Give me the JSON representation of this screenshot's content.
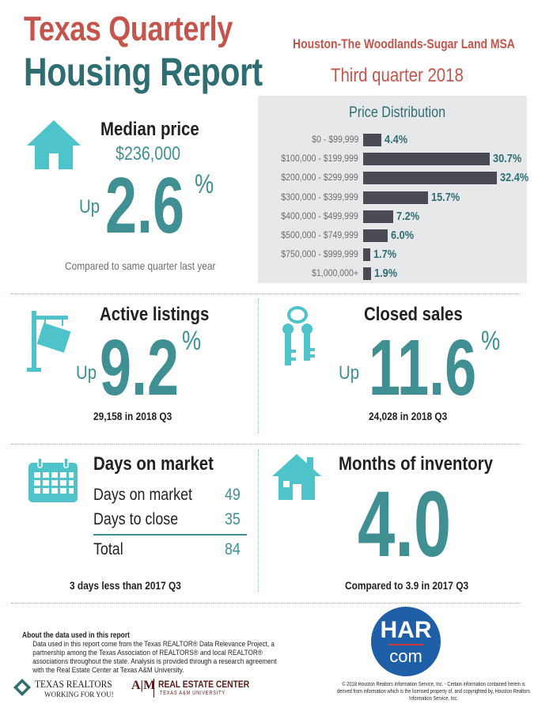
{
  "header": {
    "title_line1": "Texas Quarterly",
    "title_line2": "Housing Report",
    "msa": "Houston-The Woodlands-Sugar Land MSA",
    "quarter": "Third quarter 2018"
  },
  "median_price": {
    "heading": "Median price",
    "price": "$236,000",
    "direction": "Up",
    "change": "2.6",
    "unit": "%",
    "comparison": "Compared to same quarter last year"
  },
  "price_distribution": {
    "title": "Price Distribution",
    "ranges": [
      {
        "label": "$0 - $99,999",
        "value": 4.4,
        "display": "4.4%"
      },
      {
        "label": "$100,000 - $199,999",
        "value": 30.7,
        "display": "30.7%"
      },
      {
        "label": "$200,000 - $299,999",
        "value": 32.4,
        "display": "32.4%"
      },
      {
        "label": "$300,000 - $399,999",
        "value": 15.7,
        "display": "15.7%"
      },
      {
        "label": "$400,000 - $499,999",
        "value": 7.2,
        "display": "7.2%"
      },
      {
        "label": "$500,000 - $749,999",
        "value": 6.0,
        "display": "6.0%"
      },
      {
        "label": "$750,000 - $999,999",
        "value": 1.7,
        "display": "1.7%"
      },
      {
        "label": "$1,000,000+",
        "value": 1.9,
        "display": "1.9%"
      }
    ]
  },
  "active_listings": {
    "heading": "Active listings",
    "direction": "Up",
    "change": "9.2",
    "unit": "%",
    "detail": "29,158 in 2018 Q3"
  },
  "closed_sales": {
    "heading": "Closed sales",
    "direction": "Up",
    "change": "11.6",
    "unit": "%",
    "detail": "24,028 in 2018 Q3"
  },
  "days_on_market": {
    "heading": "Days on market",
    "rows": [
      {
        "label": "Days on market",
        "value": "49"
      },
      {
        "label": "Days to close",
        "value": "35"
      }
    ],
    "total_label": "Total",
    "total_value": "84",
    "comparison": "3 days less than 2017 Q3"
  },
  "months_of_inventory": {
    "heading": "Months of inventory",
    "value": "4.0",
    "comparison": "Compared to 3.9 in 2017 Q3"
  },
  "about": {
    "title": "About the data used in this report",
    "text": "Data used in this report come from the Texas REALTOR® Data Relevance Project, a partnership among the Texas Association of REALTORS® and local REALTOR® associations throughout the state. Analysis is provided through a research agreement with the Real Estate Center at Texas A&M University."
  },
  "logos": {
    "texas_realtors": "TEXAS REALTORS",
    "texas_realtors_tagline": "WORKING FOR YOU!",
    "atm": "A|M",
    "rec": "REAL ESTATE CENTER",
    "rec_sub": "TEXAS A&M UNIVERSITY",
    "har_top": "HAR",
    "har_bottom": "com"
  },
  "copyright": "© 2018 Houston Realtors Information Service, Inc. - Certain information contained herein is derived from information which is the licensed property of, and copyrighted by, Houston Realtors Information Service, Inc.",
  "colors": {
    "teal": "#3f8f93",
    "dark_teal": "#2e6e73",
    "red": "#c4544c",
    "icon": "#4ec3c9",
    "bar": "#4a4a55",
    "panel": "#e7e8e9",
    "har_blue": "#1f5fa8"
  }
}
